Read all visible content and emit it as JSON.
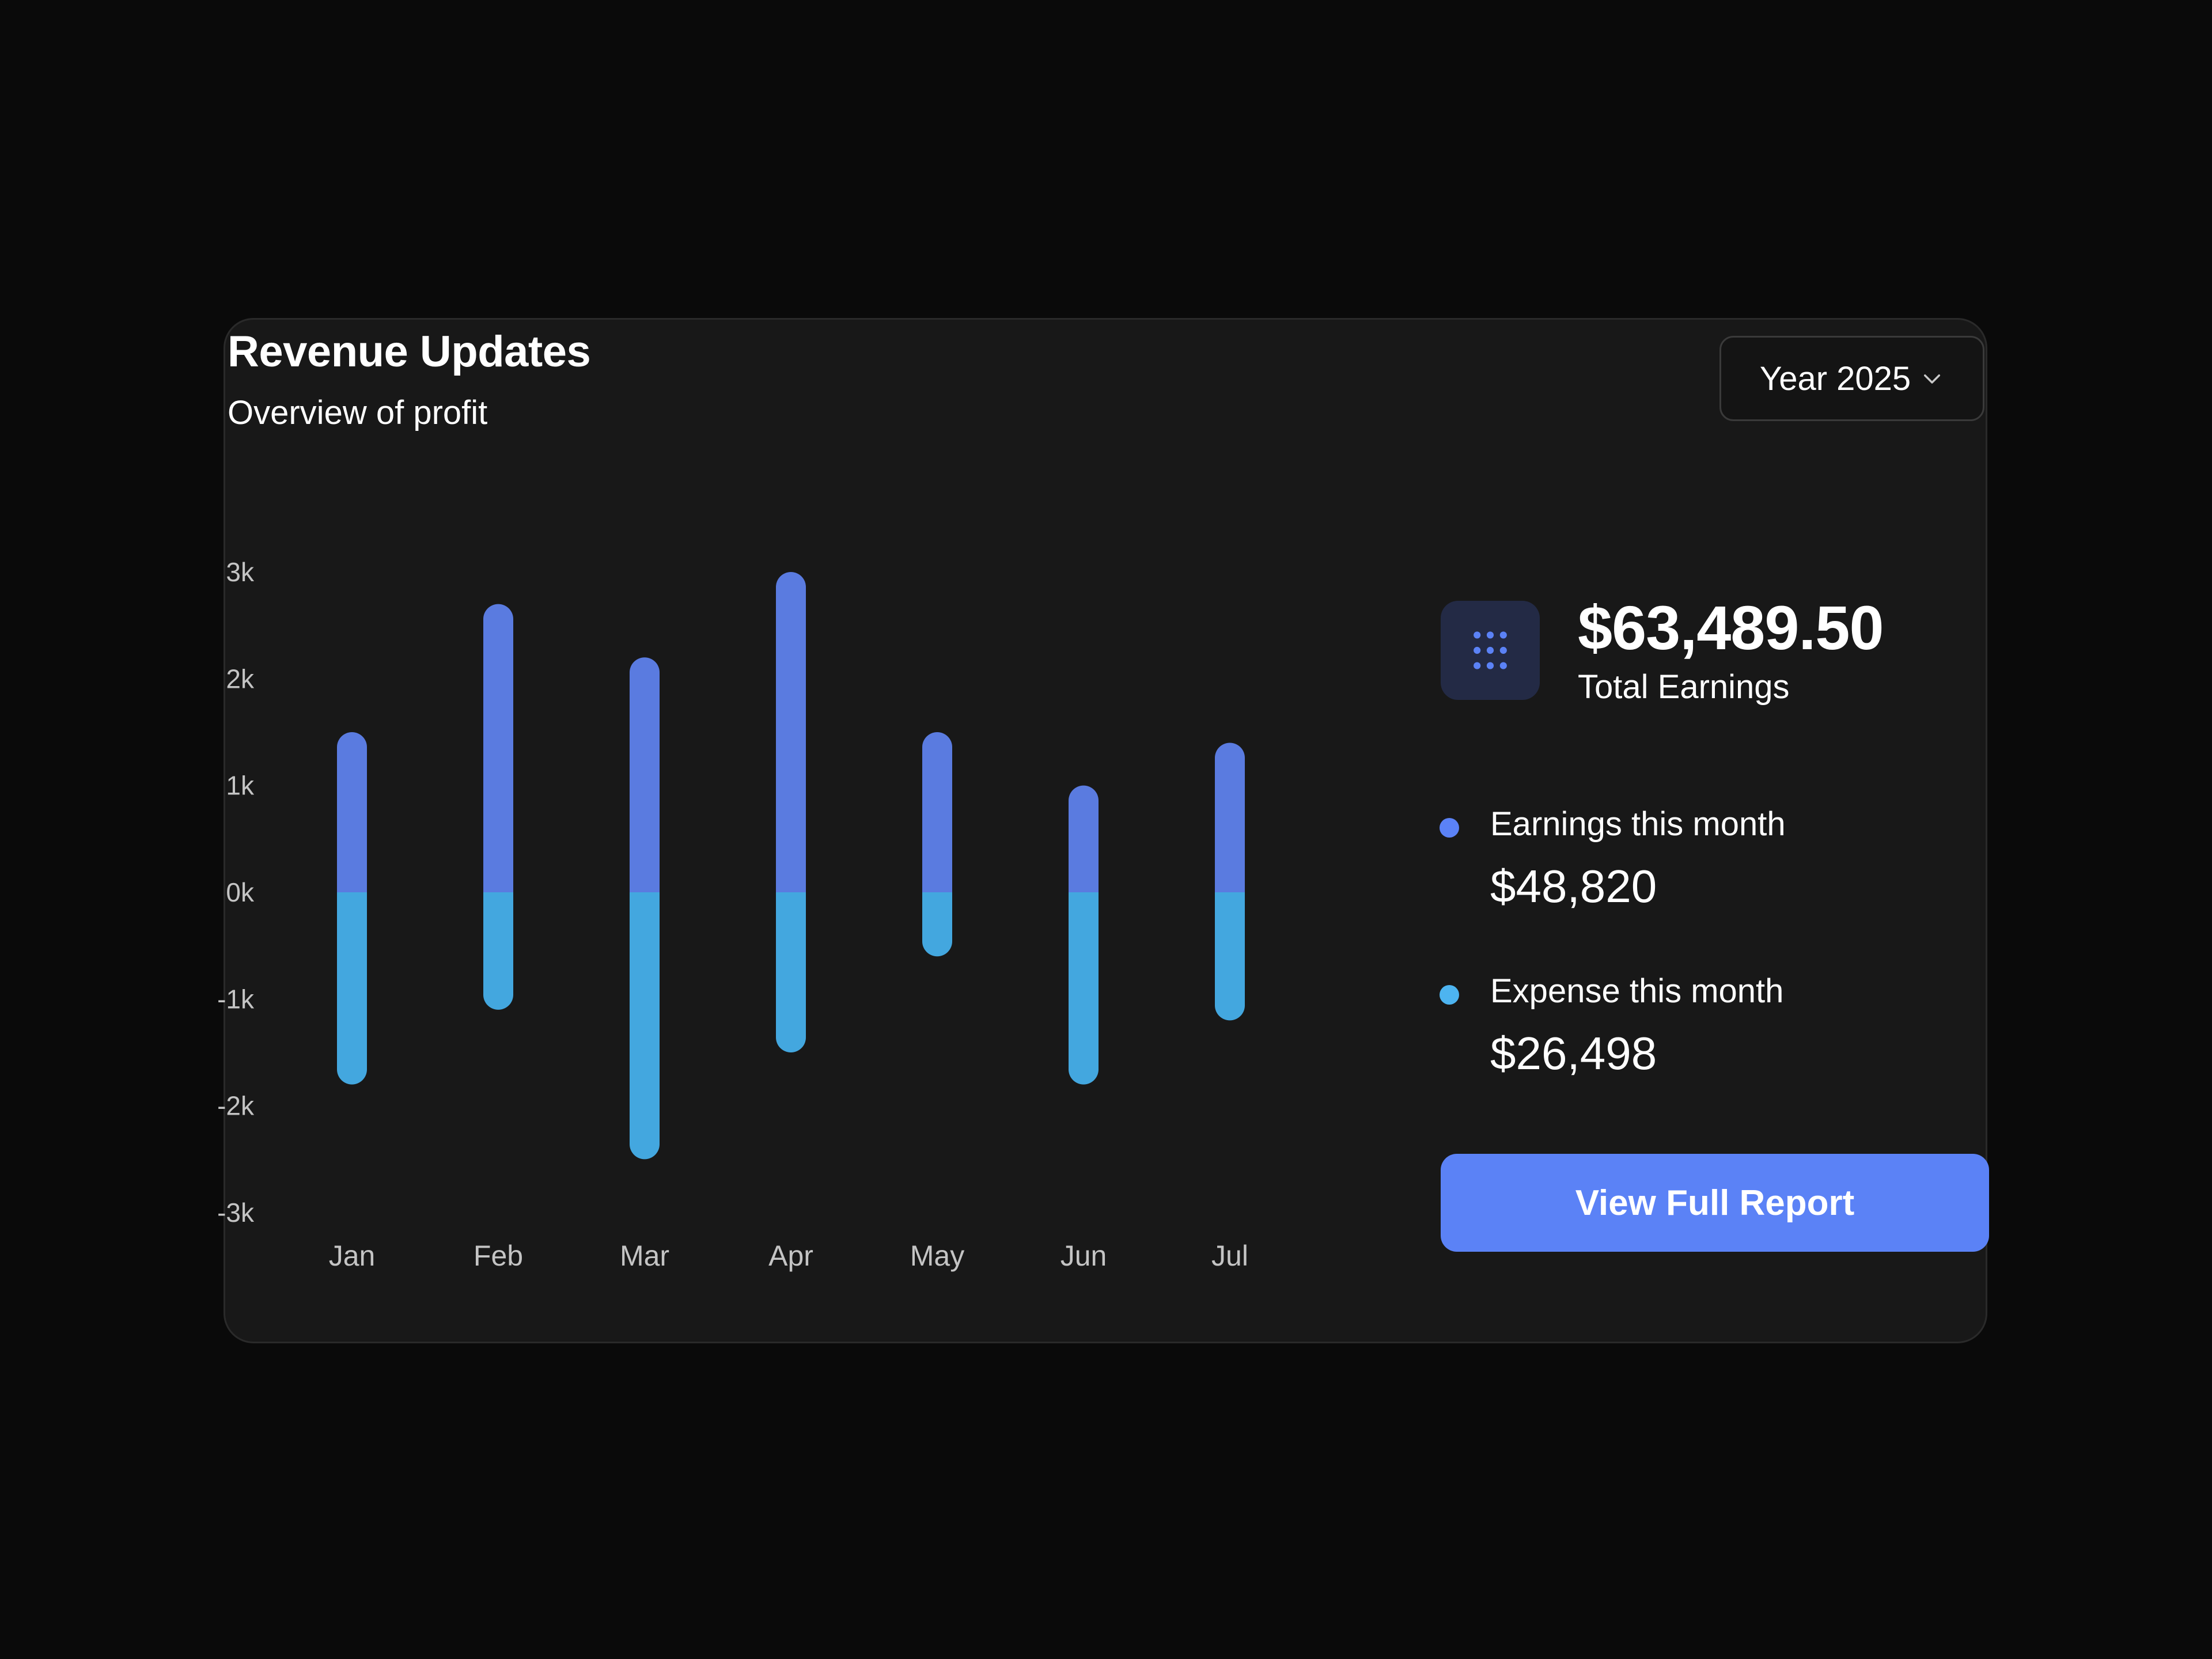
{
  "header": {
    "title": "Revenue Updates",
    "subtitle": "Overview of profit"
  },
  "year_select": {
    "label": "Year 2025",
    "icon": "chevron-down-icon"
  },
  "summary": {
    "icon": "grid-dots-icon",
    "total_value": "$63,489.50",
    "total_label": "Total Earnings",
    "earnings_label": "Earnings this month",
    "earnings_value": "$48,820",
    "expense_label": "Expense this month",
    "expense_value": "$26,498"
  },
  "button": {
    "label": "View Full Report"
  },
  "colors": {
    "earnings": "#5a7be0",
    "expense": "#43a7df",
    "earnings_dot": "#5b82f6",
    "expense_dot": "#4db4f0",
    "accent": "#5b82f6"
  },
  "chart_data": {
    "type": "bar",
    "categories": [
      "Jan",
      "Feb",
      "Mar",
      "Apr",
      "May",
      "Jun",
      "Jul"
    ],
    "series": [
      {
        "name": "Earnings this month",
        "values": [
          1500,
          2700,
          2200,
          3000,
          1500,
          1000,
          1400
        ]
      },
      {
        "name": "Expense this month",
        "values": [
          -1800,
          -1100,
          -2500,
          -1500,
          -600,
          -1800,
          -1200
        ]
      }
    ],
    "y_ticks": [
      "3k",
      "2k",
      "1k",
      "0k",
      "-1k",
      "-2k",
      "-3k"
    ],
    "y_tick_values": [
      3000,
      2000,
      1000,
      0,
      -1000,
      -2000,
      -3000
    ],
    "ylim": [
      -3000,
      3000
    ],
    "grid": false,
    "legend": "none",
    "title": "",
    "xlabel": "",
    "ylabel": ""
  }
}
